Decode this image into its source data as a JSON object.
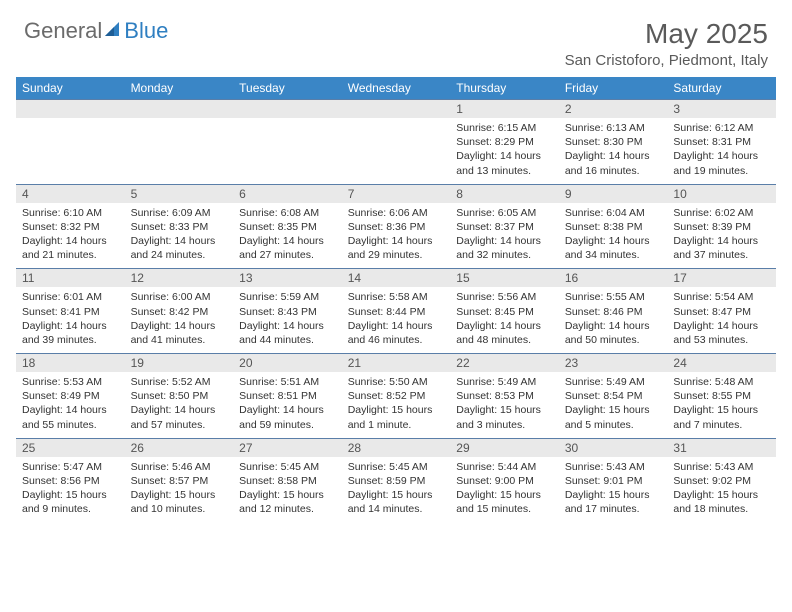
{
  "logo": {
    "general": "General",
    "blue": "Blue"
  },
  "title": "May 2025",
  "location": "San Cristoforo, Piedmont, Italy",
  "colors": {
    "header_bg": "#3a86c6",
    "daynum_bg": "#e9e9e9",
    "border": "#5a7ea8",
    "text": "#333333",
    "title_text": "#5a5a5a",
    "logo_gray": "#6b6b6b",
    "logo_blue": "#2f7fc1"
  },
  "dow": [
    "Sunday",
    "Monday",
    "Tuesday",
    "Wednesday",
    "Thursday",
    "Friday",
    "Saturday"
  ],
  "weeks": [
    [
      {
        "n": "",
        "d": ""
      },
      {
        "n": "",
        "d": ""
      },
      {
        "n": "",
        "d": ""
      },
      {
        "n": "",
        "d": ""
      },
      {
        "n": "1",
        "d": "Sunrise: 6:15 AM\nSunset: 8:29 PM\nDaylight: 14 hours and 13 minutes."
      },
      {
        "n": "2",
        "d": "Sunrise: 6:13 AM\nSunset: 8:30 PM\nDaylight: 14 hours and 16 minutes."
      },
      {
        "n": "3",
        "d": "Sunrise: 6:12 AM\nSunset: 8:31 PM\nDaylight: 14 hours and 19 minutes."
      }
    ],
    [
      {
        "n": "4",
        "d": "Sunrise: 6:10 AM\nSunset: 8:32 PM\nDaylight: 14 hours and 21 minutes."
      },
      {
        "n": "5",
        "d": "Sunrise: 6:09 AM\nSunset: 8:33 PM\nDaylight: 14 hours and 24 minutes."
      },
      {
        "n": "6",
        "d": "Sunrise: 6:08 AM\nSunset: 8:35 PM\nDaylight: 14 hours and 27 minutes."
      },
      {
        "n": "7",
        "d": "Sunrise: 6:06 AM\nSunset: 8:36 PM\nDaylight: 14 hours and 29 minutes."
      },
      {
        "n": "8",
        "d": "Sunrise: 6:05 AM\nSunset: 8:37 PM\nDaylight: 14 hours and 32 minutes."
      },
      {
        "n": "9",
        "d": "Sunrise: 6:04 AM\nSunset: 8:38 PM\nDaylight: 14 hours and 34 minutes."
      },
      {
        "n": "10",
        "d": "Sunrise: 6:02 AM\nSunset: 8:39 PM\nDaylight: 14 hours and 37 minutes."
      }
    ],
    [
      {
        "n": "11",
        "d": "Sunrise: 6:01 AM\nSunset: 8:41 PM\nDaylight: 14 hours and 39 minutes."
      },
      {
        "n": "12",
        "d": "Sunrise: 6:00 AM\nSunset: 8:42 PM\nDaylight: 14 hours and 41 minutes."
      },
      {
        "n": "13",
        "d": "Sunrise: 5:59 AM\nSunset: 8:43 PM\nDaylight: 14 hours and 44 minutes."
      },
      {
        "n": "14",
        "d": "Sunrise: 5:58 AM\nSunset: 8:44 PM\nDaylight: 14 hours and 46 minutes."
      },
      {
        "n": "15",
        "d": "Sunrise: 5:56 AM\nSunset: 8:45 PM\nDaylight: 14 hours and 48 minutes."
      },
      {
        "n": "16",
        "d": "Sunrise: 5:55 AM\nSunset: 8:46 PM\nDaylight: 14 hours and 50 minutes."
      },
      {
        "n": "17",
        "d": "Sunrise: 5:54 AM\nSunset: 8:47 PM\nDaylight: 14 hours and 53 minutes."
      }
    ],
    [
      {
        "n": "18",
        "d": "Sunrise: 5:53 AM\nSunset: 8:49 PM\nDaylight: 14 hours and 55 minutes."
      },
      {
        "n": "19",
        "d": "Sunrise: 5:52 AM\nSunset: 8:50 PM\nDaylight: 14 hours and 57 minutes."
      },
      {
        "n": "20",
        "d": "Sunrise: 5:51 AM\nSunset: 8:51 PM\nDaylight: 14 hours and 59 minutes."
      },
      {
        "n": "21",
        "d": "Sunrise: 5:50 AM\nSunset: 8:52 PM\nDaylight: 15 hours and 1 minute."
      },
      {
        "n": "22",
        "d": "Sunrise: 5:49 AM\nSunset: 8:53 PM\nDaylight: 15 hours and 3 minutes."
      },
      {
        "n": "23",
        "d": "Sunrise: 5:49 AM\nSunset: 8:54 PM\nDaylight: 15 hours and 5 minutes."
      },
      {
        "n": "24",
        "d": "Sunrise: 5:48 AM\nSunset: 8:55 PM\nDaylight: 15 hours and 7 minutes."
      }
    ],
    [
      {
        "n": "25",
        "d": "Sunrise: 5:47 AM\nSunset: 8:56 PM\nDaylight: 15 hours and 9 minutes."
      },
      {
        "n": "26",
        "d": "Sunrise: 5:46 AM\nSunset: 8:57 PM\nDaylight: 15 hours and 10 minutes."
      },
      {
        "n": "27",
        "d": "Sunrise: 5:45 AM\nSunset: 8:58 PM\nDaylight: 15 hours and 12 minutes."
      },
      {
        "n": "28",
        "d": "Sunrise: 5:45 AM\nSunset: 8:59 PM\nDaylight: 15 hours and 14 minutes."
      },
      {
        "n": "29",
        "d": "Sunrise: 5:44 AM\nSunset: 9:00 PM\nDaylight: 15 hours and 15 minutes."
      },
      {
        "n": "30",
        "d": "Sunrise: 5:43 AM\nSunset: 9:01 PM\nDaylight: 15 hours and 17 minutes."
      },
      {
        "n": "31",
        "d": "Sunrise: 5:43 AM\nSunset: 9:02 PM\nDaylight: 15 hours and 18 minutes."
      }
    ]
  ]
}
